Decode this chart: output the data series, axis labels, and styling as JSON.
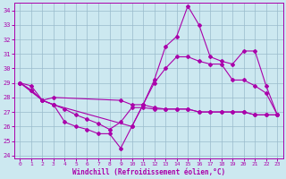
{
  "xlabel": "Windchill (Refroidissement éolien,°C)",
  "xlim": [
    -0.5,
    23.5
  ],
  "ylim": [
    23.8,
    34.5
  ],
  "yticks": [
    24,
    25,
    26,
    27,
    28,
    29,
    30,
    31,
    32,
    33,
    34
  ],
  "xticks": [
    0,
    1,
    2,
    3,
    4,
    5,
    6,
    7,
    8,
    9,
    10,
    11,
    12,
    13,
    14,
    15,
    16,
    17,
    18,
    19,
    20,
    21,
    22,
    23
  ],
  "bg_color": "#cce8f0",
  "line_color": "#aa00aa",
  "grid_color": "#99bbcc",
  "lines": [
    {
      "x": [
        0,
        2,
        3,
        10,
        11,
        12,
        13,
        14,
        15,
        16,
        17,
        18,
        19,
        20,
        21,
        22,
        23
      ],
      "y": [
        29.0,
        27.8,
        27.5,
        26.0,
        27.5,
        29.2,
        31.5,
        32.2,
        34.3,
        33.0,
        30.8,
        30.5,
        30.3,
        31.2,
        31.2,
        28.8,
        26.8
      ]
    },
    {
      "x": [
        0,
        1,
        2,
        3,
        4,
        5,
        6,
        7,
        8,
        9,
        10,
        11,
        12,
        13,
        14,
        15,
        16,
        17,
        18,
        19,
        20,
        21,
        22,
        23
      ],
      "y": [
        29.0,
        28.8,
        27.8,
        27.5,
        26.3,
        26.0,
        25.8,
        25.5,
        25.5,
        24.5,
        26.0,
        27.5,
        29.0,
        30.0,
        30.8,
        30.8,
        30.5,
        30.3,
        30.3,
        29.2,
        29.2,
        28.8,
        28.3,
        26.8
      ]
    },
    {
      "x": [
        0,
        1,
        2,
        3,
        9,
        10,
        11,
        12,
        13,
        14,
        15,
        16,
        17,
        18,
        19,
        20,
        21,
        22,
        23
      ],
      "y": [
        29.0,
        28.5,
        27.8,
        28.0,
        27.8,
        27.5,
        27.5,
        27.3,
        27.2,
        27.2,
        27.2,
        27.0,
        27.0,
        27.0,
        27.0,
        27.0,
        26.8,
        26.8,
        26.8
      ]
    },
    {
      "x": [
        0,
        1,
        2,
        3,
        4,
        5,
        6,
        7,
        8,
        9,
        10,
        11,
        12,
        13,
        14,
        15,
        16,
        17,
        18,
        19,
        20,
        21,
        22,
        23
      ],
      "y": [
        29.0,
        28.5,
        27.8,
        27.5,
        27.2,
        26.8,
        26.5,
        26.2,
        25.8,
        26.3,
        27.3,
        27.3,
        27.2,
        27.2,
        27.2,
        27.2,
        27.0,
        27.0,
        27.0,
        27.0,
        27.0,
        26.8,
        26.8,
        26.8
      ]
    }
  ]
}
